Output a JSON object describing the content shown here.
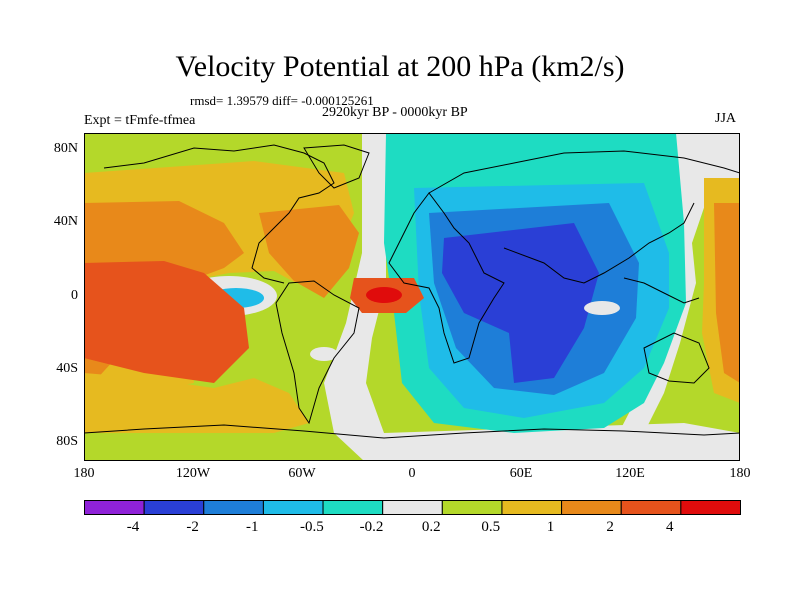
{
  "title": "Velocity Potential at 200 hPa (km2/s)",
  "stats": "rmsd= 1.39579 diff= -0.000125261",
  "period": "2920kyr BP - 0000kyr BP",
  "experiment": "Expt = tFmfe-tfmea",
  "season": "JJA",
  "lat_labels": [
    "80N",
    "40N",
    "0",
    "40S",
    "80S"
  ],
  "lat_values": [
    80,
    40,
    0,
    -40,
    -80
  ],
  "lon_labels": [
    "180",
    "120W",
    "60W",
    "0",
    "60E",
    "120E",
    "180"
  ],
  "lon_values": [
    -180,
    -120,
    -60,
    0,
    60,
    120,
    180
  ],
  "colorbar": {
    "labels": [
      "-4",
      "-2",
      "-1",
      "-0.5",
      "-0.2",
      "0.2",
      "0.5",
      "1",
      "2",
      "4"
    ],
    "colors": [
      "#8f22d8",
      "#2a3fd6",
      "#1e7ed8",
      "#1fbce8",
      "#1edcc2",
      "#e8e8e8",
      "#b4d82a",
      "#e6ba20",
      "#e8891a",
      "#e6531c",
      "#e00c0c"
    ]
  },
  "fields": {
    "background": "#b4d82a",
    "neutral": "#e8e8e8",
    "positive_1": "#e6ba20",
    "positive_2": "#e8891a",
    "positive_3": "#e6531c",
    "positive_4": "#e00c0c",
    "negative_1": "#1edcc2",
    "negative_2": "#1fbce8",
    "negative_3": "#1e7ed8",
    "negative_4": "#2a3fd6"
  }
}
